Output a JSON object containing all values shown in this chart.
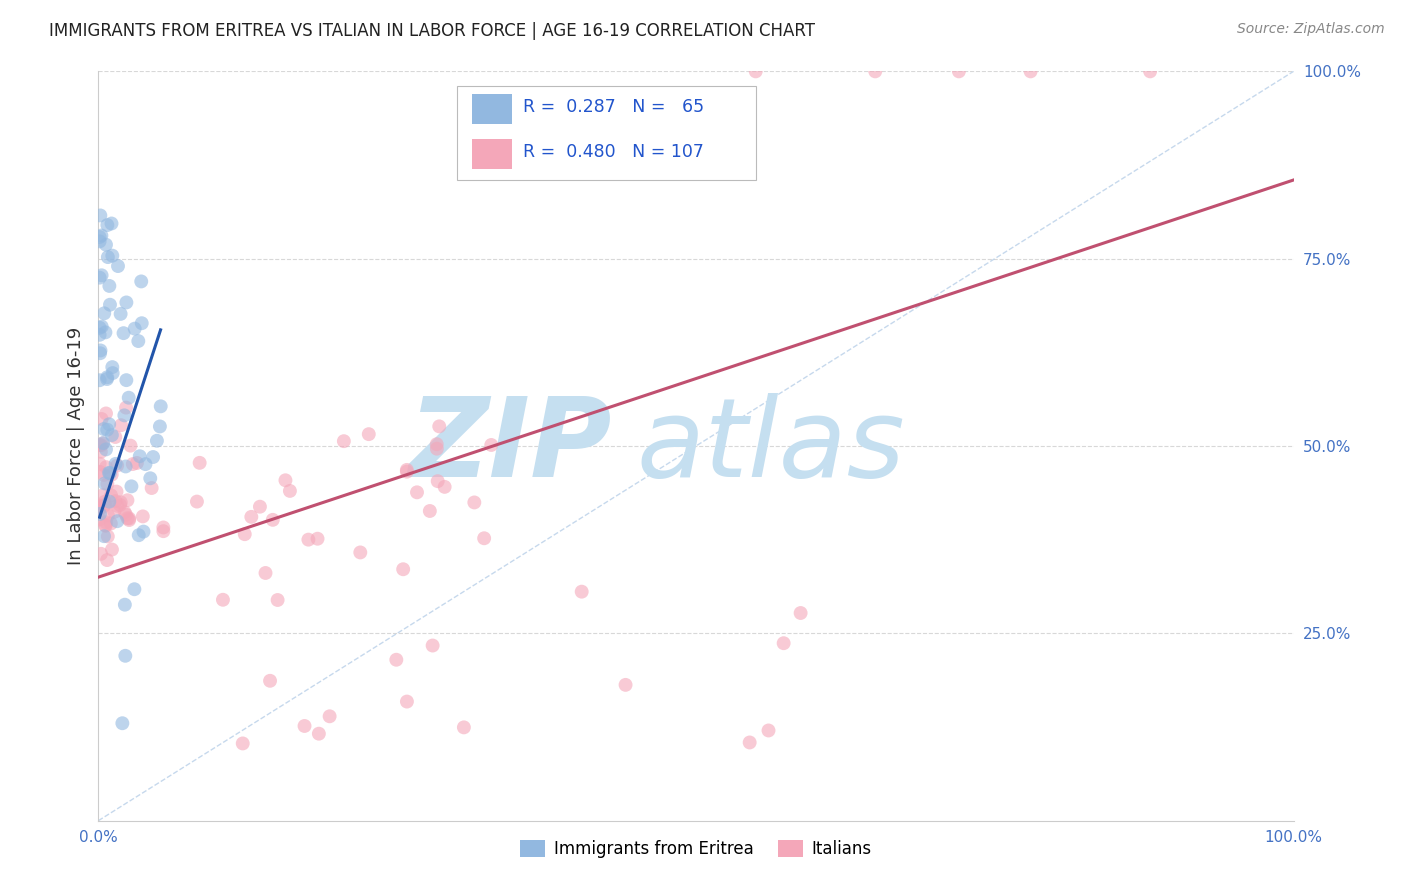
{
  "title": "IMMIGRANTS FROM ERITREA VS ITALIAN IN LABOR FORCE | AGE 16-19 CORRELATION CHART",
  "source": "Source: ZipAtlas.com",
  "ylabel": "In Labor Force | Age 16-19",
  "xlim": [
    0.0,
    1.0
  ],
  "ylim": [
    0.0,
    1.0
  ],
  "legend_blue_R": "0.287",
  "legend_blue_N": "65",
  "legend_pink_R": "0.480",
  "legend_pink_N": "107",
  "blue_color": "#92b8e0",
  "pink_color": "#f4a7b9",
  "blue_line_color": "#2255aa",
  "pink_line_color": "#c05070",
  "watermark_zip": "ZIP",
  "watermark_atlas": "atlas",
  "watermark_color_zip": "#c5dff0",
  "watermark_color_atlas": "#c5dff0",
  "scatter_alpha": 0.6,
  "scatter_size": 100,
  "blue_line_x0": 0.001,
  "blue_line_x1": 0.052,
  "blue_line_y0": 0.405,
  "blue_line_y1": 0.655,
  "pink_line_x0": 0.0,
  "pink_line_x1": 1.0,
  "pink_line_y0": 0.325,
  "pink_line_y1": 0.855,
  "diag_color": "#b8cfe8",
  "grid_color": "#d8d8d8",
  "tick_color": "#4472c4",
  "source_color": "#888888"
}
